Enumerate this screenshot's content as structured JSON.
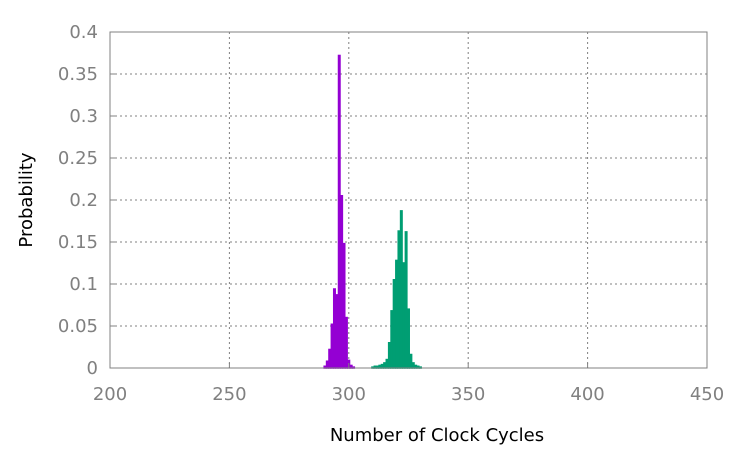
{
  "chart_data": {
    "type": "bar",
    "title": "",
    "xlabel": "Number of Clock Cycles",
    "ylabel": "Probability",
    "xlim": [
      200,
      450
    ],
    "ylim": [
      0,
      0.4
    ],
    "x_ticks": [
      200,
      250,
      300,
      350,
      400,
      450
    ],
    "x_tick_labels": [
      "200",
      "250",
      "300",
      "350",
      "400",
      "450"
    ],
    "y_ticks": [
      0,
      0.05,
      0.1,
      0.15,
      0.2,
      0.25,
      0.3,
      0.35,
      0.4
    ],
    "y_tick_labels": [
      "0",
      "0.05",
      "0.1",
      "0.15",
      "0.2",
      "0.25",
      "0.3",
      "0.35",
      "0.4"
    ],
    "grid": true,
    "bin_width": 1,
    "series": [
      {
        "color": "#9400d3",
        "x": [
          290,
          291,
          292,
          293,
          294,
          295,
          296,
          297,
          298,
          299,
          300,
          301,
          302
        ],
        "values": [
          0.002,
          0.008,
          0.022,
          0.052,
          0.094,
          0.087,
          0.372,
          0.205,
          0.148,
          0.06,
          0.009,
          0.003,
          0.001
        ]
      },
      {
        "color": "#009e73",
        "x": [
          310,
          311,
          312,
          313,
          314,
          315,
          316,
          317,
          318,
          319,
          320,
          321,
          322,
          323,
          324,
          325,
          326,
          327,
          328,
          329,
          330
        ],
        "values": [
          0.001,
          0.002,
          0.002,
          0.003,
          0.004,
          0.006,
          0.01,
          0.03,
          0.068,
          0.105,
          0.128,
          0.163,
          0.187,
          0.125,
          0.162,
          0.07,
          0.016,
          0.006,
          0.003,
          0.002,
          0.001
        ]
      }
    ]
  }
}
